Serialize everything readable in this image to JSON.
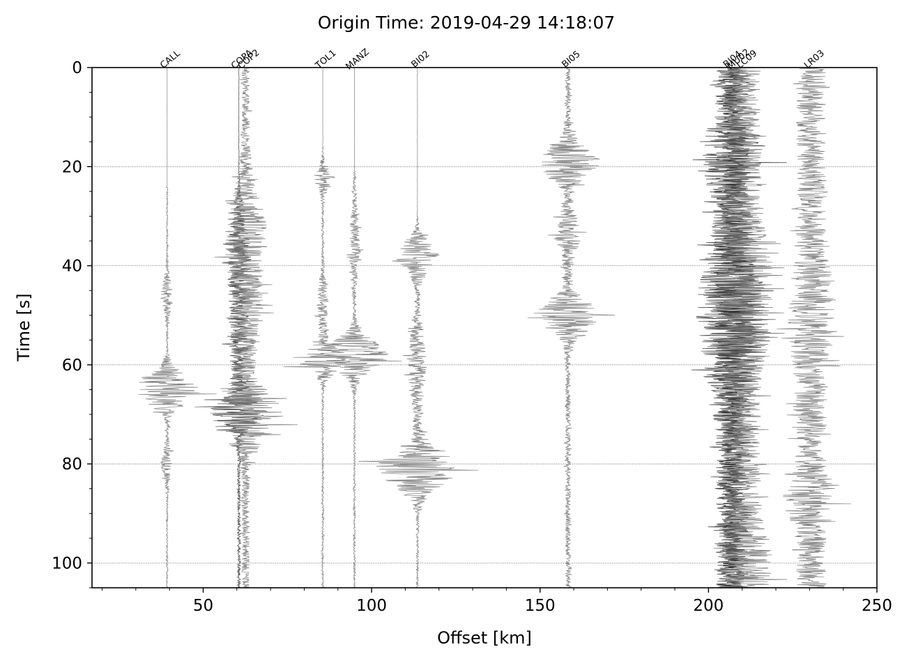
{
  "chart_data": {
    "type": "seismic-record-section",
    "title": "Origin Time: 2019-04-29 14:18:07",
    "xlabel": "Offset [km]",
    "ylabel": "Time [s]",
    "xlim": [
      17,
      250
    ],
    "ylim": [
      105,
      0
    ],
    "x_ticks": [
      50,
      100,
      150,
      200,
      250
    ],
    "y_ticks": [
      0,
      20,
      40,
      60,
      80,
      100
    ],
    "x_minor_step": 10,
    "y_minor_step": 5,
    "grid": "horizontal dotted at y ticks",
    "trace_color": "#7a7a7a",
    "dark_trace_color": "#2a2a2a",
    "stations": [
      {
        "name": "CALL",
        "offset_km": 39.3,
        "base_amp_km": 0.25,
        "onset_s": 24,
        "bursts": [
          {
            "t": 65,
            "amp_km": 9.5,
            "width_s": 4
          },
          {
            "t": 46,
            "amp_km": 1.6,
            "width_s": 4
          },
          {
            "t": 80,
            "amp_km": 1.6,
            "width_s": 4
          }
        ]
      },
      {
        "name": "COPA",
        "offset_km": 60.6,
        "base_amp_km": 0.5,
        "onset_s": 26,
        "dark": true,
        "bursts": [
          {
            "t": 69,
            "amp_km": 8,
            "width_s": 4
          },
          {
            "t": 38,
            "amp_km": 3,
            "width_s": 10
          },
          {
            "t": 55,
            "amp_km": 2.5,
            "width_s": 10
          }
        ]
      },
      {
        "name": "COP2",
        "offset_km": 62.6,
        "base_amp_km": 1.2,
        "onset_s": 0,
        "bursts": [
          {
            "t": 70,
            "amp_km": 10,
            "width_s": 6
          },
          {
            "t": 33,
            "amp_km": 5,
            "width_s": 10
          },
          {
            "t": 50,
            "amp_km": 4,
            "width_s": 10
          }
        ]
      },
      {
        "name": "TOL1",
        "offset_km": 85.5,
        "base_amp_km": 0.3,
        "onset_s": 20,
        "bursts": [
          {
            "t": 59,
            "amp_km": 9,
            "width_s": 3
          },
          {
            "t": 22,
            "amp_km": 2.5,
            "width_s": 3
          },
          {
            "t": 48,
            "amp_km": 1.5,
            "width_s": 6
          }
        ]
      },
      {
        "name": "MANZ",
        "offset_km": 94.9,
        "base_amp_km": 0.3,
        "onset_s": 21,
        "bursts": [
          {
            "t": 58,
            "amp_km": 10,
            "width_s": 4
          },
          {
            "t": 36,
            "amp_km": 1.5,
            "width_s": 8
          }
        ]
      },
      {
        "name": "BI02",
        "offset_km": 113.6,
        "base_amp_km": 0.35,
        "onset_s": 34,
        "bursts": [
          {
            "t": 81,
            "amp_km": 12,
            "width_s": 5
          },
          {
            "t": 38,
            "amp_km": 6,
            "width_s": 4
          },
          {
            "t": 60,
            "amp_km": 2.5,
            "width_s": 10
          }
        ]
      },
      {
        "name": "BI05",
        "offset_km": 158.3,
        "base_amp_km": 0.8,
        "onset_s": 0,
        "bursts": [
          {
            "t": 19,
            "amp_km": 9,
            "width_s": 4
          },
          {
            "t": 50,
            "amp_km": 9.5,
            "width_s": 4
          },
          {
            "t": 34,
            "amp_km": 3,
            "width_s": 6
          }
        ]
      },
      {
        "name": "BI04",
        "offset_km": 206.2,
        "base_amp_km": 4.0,
        "onset_s": 0,
        "dark": true,
        "bursts": [
          {
            "t": 18,
            "amp_km": 7,
            "width_s": 6
          },
          {
            "t": 50,
            "amp_km": 6,
            "width_s": 15
          }
        ]
      },
      {
        "name": "MU02",
        "offset_km": 208.0,
        "base_amp_km": 4.0,
        "onset_s": 0,
        "dark": true,
        "bursts": [
          {
            "t": 48,
            "amp_km": 5,
            "width_s": 15
          }
        ]
      },
      {
        "name": "LC09",
        "offset_km": 210.5,
        "base_amp_km": 5.0,
        "onset_s": 0,
        "bursts": [
          {
            "t": 45,
            "amp_km": 4,
            "width_s": 15
          },
          {
            "t": 100,
            "amp_km": 4,
            "width_s": 8
          }
        ]
      },
      {
        "name": "LR03",
        "offset_km": 230.5,
        "base_amp_km": 4.5,
        "onset_s": 0,
        "bursts": [
          {
            "t": 87,
            "amp_km": 4,
            "width_s": 5
          },
          {
            "t": 50,
            "amp_km": 2.5,
            "width_s": 12
          }
        ]
      }
    ]
  }
}
